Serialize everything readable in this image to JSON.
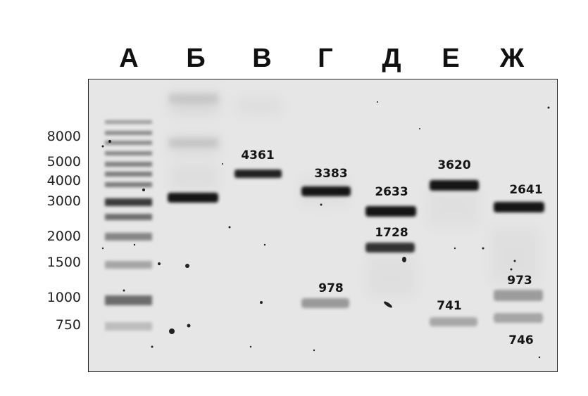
{
  "lanes": [
    "А",
    "Б",
    "В",
    "Г",
    "Д",
    "Е",
    "Ж"
  ],
  "ladder": [
    "8000",
    "5000",
    "4000",
    "3000",
    "2000",
    "1500",
    "1000",
    "750"
  ],
  "bands": [
    {
      "lane": "Б",
      "size": "",
      "label": ""
    },
    {
      "lane": "В",
      "size": "4361",
      "label": "4361"
    },
    {
      "lane": "Г",
      "size": "3383",
      "label": "3383"
    },
    {
      "lane": "Г",
      "size": "978",
      "label": "978"
    },
    {
      "lane": "Д",
      "size": "2633",
      "label": "2633"
    },
    {
      "lane": "Д",
      "size": "1728",
      "label": "1728"
    },
    {
      "lane": "Е",
      "size": "3620",
      "label": "3620"
    },
    {
      "lane": "Е",
      "size": "741",
      "label": "741"
    },
    {
      "lane": "Ж",
      "size": "2641",
      "label": "2641"
    },
    {
      "lane": "Ж",
      "size": "973",
      "label": "973"
    },
    {
      "lane": "Ж",
      "size": "746",
      "label": "746"
    }
  ],
  "colors": {
    "gel": "#e6e6e6",
    "band": "#111111",
    "frame": "#222222"
  }
}
